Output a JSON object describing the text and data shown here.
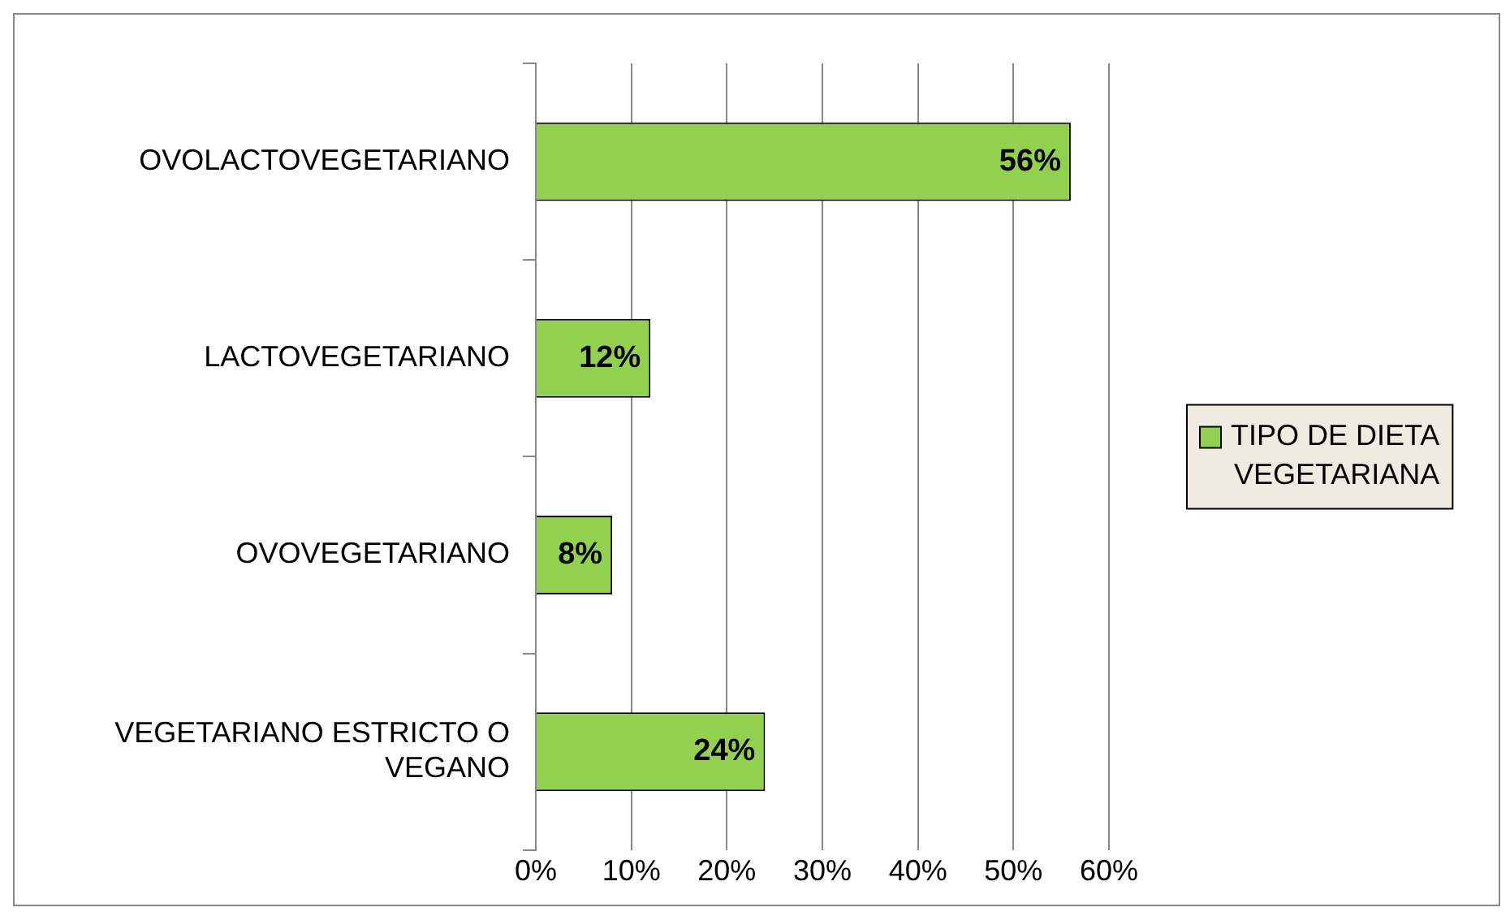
{
  "chart_data": {
    "type": "bar",
    "orientation": "horizontal",
    "categories": [
      "OVOLACTOVEGETARIANO",
      "LACTOVEGETARIANO",
      "OVOVEGETARIANO",
      "VEGETARIANO ESTRICTO O VEGANO"
    ],
    "series": [
      {
        "name": "TIPO DE DIETA VEGETARIANA",
        "color": "#92d050",
        "values": [
          56,
          12,
          8,
          24
        ],
        "value_labels": [
          "56%",
          "12%",
          "8%",
          "24%"
        ]
      }
    ],
    "xlim": [
      0,
      60
    ],
    "xticks": [
      {
        "value": 0,
        "label": "0%"
      },
      {
        "value": 10,
        "label": "10%"
      },
      {
        "value": 20,
        "label": "20%"
      },
      {
        "value": 30,
        "label": "30%"
      },
      {
        "value": 40,
        "label": "40%"
      },
      {
        "value": 50,
        "label": "50%"
      },
      {
        "value": 60,
        "label": "60%"
      }
    ],
    "grid": "x",
    "legend": "right"
  }
}
